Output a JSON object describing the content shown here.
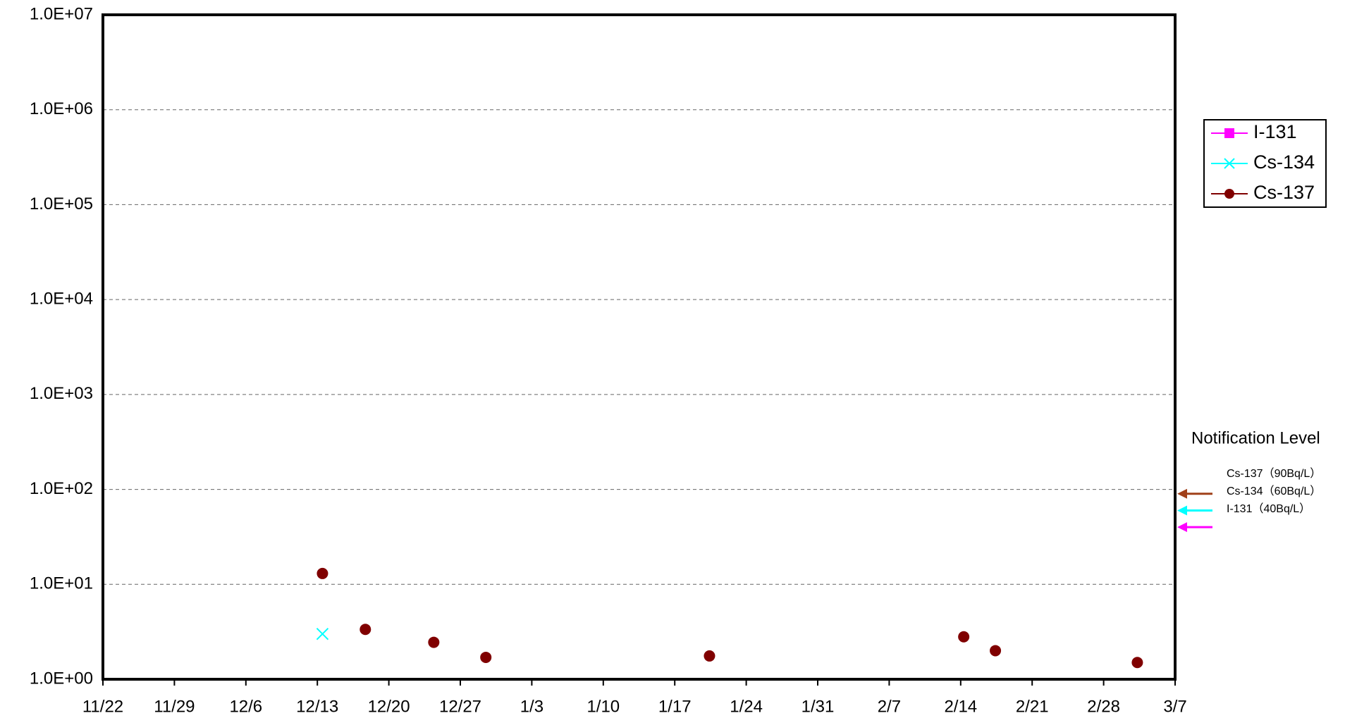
{
  "chart_data": {
    "type": "scatter",
    "log_y": true,
    "grid": true,
    "ylim": [
      1,
      10000000
    ],
    "yticks": [
      {
        "value": 1,
        "label": "1.0E+00"
      },
      {
        "value": 10,
        "label": "1.0E+01"
      },
      {
        "value": 100,
        "label": "1.0E+02"
      },
      {
        "value": 1000,
        "label": "1.0E+03"
      },
      {
        "value": 10000,
        "label": "1.0E+04"
      },
      {
        "value": 100000,
        "label": "1.0E+05"
      },
      {
        "value": 1000000,
        "label": "1.0E+06"
      },
      {
        "value": 10000000,
        "label": "1.0E+07"
      }
    ],
    "xlim": [
      0,
      105
    ],
    "xticks": [
      {
        "value": 0,
        "label": "11/22"
      },
      {
        "value": 7,
        "label": "11/29"
      },
      {
        "value": 14,
        "label": "12/6"
      },
      {
        "value": 21,
        "label": "12/13"
      },
      {
        "value": 28,
        "label": "12/20"
      },
      {
        "value": 35,
        "label": "12/27"
      },
      {
        "value": 42,
        "label": "1/3"
      },
      {
        "value": 49,
        "label": "1/10"
      },
      {
        "value": 56,
        "label": "1/17"
      },
      {
        "value": 63,
        "label": "1/24"
      },
      {
        "value": 70,
        "label": "1/31"
      },
      {
        "value": 77,
        "label": "2/7"
      },
      {
        "value": 84,
        "label": "2/14"
      },
      {
        "value": 91,
        "label": "2/21"
      },
      {
        "value": 98,
        "label": "2/28"
      },
      {
        "value": 105,
        "label": "3/7"
      }
    ],
    "series": [
      {
        "name": "I-131",
        "color": "#ff00ff",
        "marker": "square",
        "x": [],
        "values": []
      },
      {
        "name": "Cs-134",
        "color": "#00ffff",
        "marker": "x",
        "x": [
          21.5
        ],
        "values": [
          3.0
        ]
      },
      {
        "name": "Cs-137",
        "color": "#800000",
        "marker": "circle",
        "x": [
          21.5,
          25.7,
          32.4,
          37.5,
          59.4,
          84.3,
          87.4,
          101.3
        ],
        "values": [
          13,
          3.35,
          2.45,
          1.7,
          1.76,
          2.8,
          2.0,
          1.5
        ]
      }
    ],
    "notification_title": "Notification Level",
    "notification_levels": [
      {
        "label": "Cs-137（90Bq/L）",
        "value": 90,
        "color": "#a0401a"
      },
      {
        "label": "Cs-134（60Bq/L）",
        "value": 60,
        "color": "#00ffff"
      },
      {
        "label": "I-131（40Bq/L）",
        "value": 40,
        "color": "#ff00ff"
      }
    ]
  }
}
